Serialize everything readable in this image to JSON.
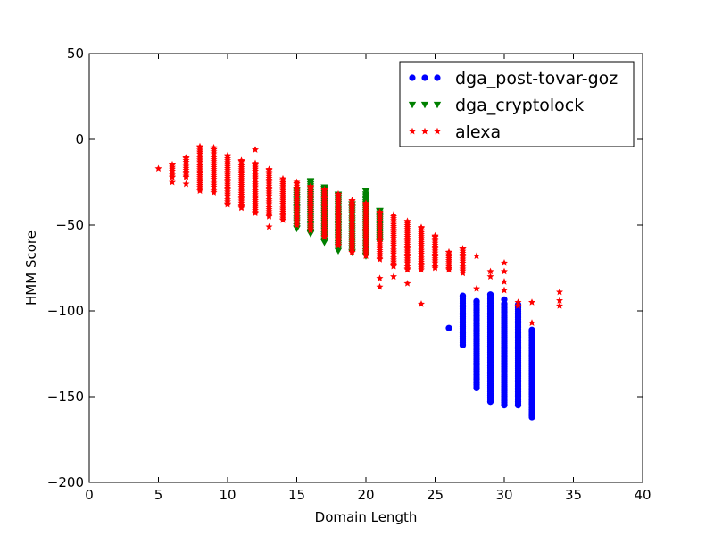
{
  "chart_data": {
    "type": "scatter",
    "xlabel": "Domain Length",
    "ylabel": "HMM Score",
    "xlim": [
      0,
      40
    ],
    "ylim": [
      -200,
      50
    ],
    "xticks": [
      0,
      5,
      10,
      15,
      20,
      25,
      30,
      35,
      40
    ],
    "yticks": [
      50,
      0,
      -50,
      -100,
      -150,
      -200
    ],
    "xtick_labels": [
      "0",
      "5",
      "10",
      "15",
      "20",
      "25",
      "30",
      "35",
      "40"
    ],
    "ytick_labels": [
      "50",
      "0",
      "−50",
      "−100",
      "−150",
      "−200"
    ],
    "grid": false,
    "legend": "top-right",
    "series": [
      {
        "name": "dga_post-tovar-goz",
        "marker": "circle",
        "color": "#0000ff",
        "ranges": [
          {
            "x": 27,
            "ymin": -120,
            "ymax": -92
          },
          {
            "x": 28,
            "ymin": -145,
            "ymax": -95
          },
          {
            "x": 29,
            "ymin": -153,
            "ymax": -92
          },
          {
            "x": 30,
            "ymin": -155,
            "ymax": -96
          },
          {
            "x": 31,
            "ymin": -155,
            "ymax": -98
          },
          {
            "x": 32,
            "ymin": -162,
            "ymax": -113
          }
        ],
        "points": [
          [
            26,
            -110
          ],
          [
            27,
            -113
          ]
        ]
      },
      {
        "name": "dga_cryptolock",
        "marker": "triangle-down",
        "color": "#008000",
        "ranges": [
          {
            "x": 15,
            "ymin": -52,
            "ymax": -30
          },
          {
            "x": 16,
            "ymin": -55,
            "ymax": -25
          },
          {
            "x": 17,
            "ymin": -60,
            "ymax": -29
          },
          {
            "x": 18,
            "ymin": -65,
            "ymax": -33
          },
          {
            "x": 19,
            "ymin": -66,
            "ymax": -38
          },
          {
            "x": 20,
            "ymin": -68,
            "ymax": -32
          },
          {
            "x": 21,
            "ymin": -60,
            "ymax": -42
          }
        ],
        "points": []
      },
      {
        "name": "alexa",
        "marker": "star",
        "color": "#ff0000",
        "ranges": [
          {
            "x": 6,
            "ymin": -22,
            "ymax": -15
          },
          {
            "x": 7,
            "ymin": -22,
            "ymax": -11
          },
          {
            "x": 8,
            "ymin": -30,
            "ymax": -5
          },
          {
            "x": 9,
            "ymin": -31,
            "ymax": -6
          },
          {
            "x": 10,
            "ymin": -38,
            "ymax": -10
          },
          {
            "x": 11,
            "ymin": -40,
            "ymax": -13
          },
          {
            "x": 12,
            "ymin": -43,
            "ymax": -15
          },
          {
            "x": 13,
            "ymin": -45,
            "ymax": -18
          },
          {
            "x": 14,
            "ymin": -47,
            "ymax": -24
          },
          {
            "x": 15,
            "ymin": -50,
            "ymax": -26
          },
          {
            "x": 16,
            "ymin": -53,
            "ymax": -28
          },
          {
            "x": 17,
            "ymin": -57,
            "ymax": -30
          },
          {
            "x": 18,
            "ymin": -62,
            "ymax": -33
          },
          {
            "x": 19,
            "ymin": -66,
            "ymax": -36
          },
          {
            "x": 20,
            "ymin": -68,
            "ymax": -38
          },
          {
            "x": 21,
            "ymin": -70,
            "ymax": -43
          },
          {
            "x": 22,
            "ymin": -74,
            "ymax": -45
          },
          {
            "x": 23,
            "ymin": -76,
            "ymax": -49
          },
          {
            "x": 24,
            "ymin": -76,
            "ymax": -52
          },
          {
            "x": 25,
            "ymin": -75,
            "ymax": -57
          },
          {
            "x": 26,
            "ymin": -76,
            "ymax": -66
          },
          {
            "x": 27,
            "ymin": -78,
            "ymax": -64
          }
        ],
        "points": [
          [
            5,
            -17
          ],
          [
            6,
            -25
          ],
          [
            7,
            -26
          ],
          [
            12,
            -6
          ],
          [
            13,
            -51
          ],
          [
            21,
            -81
          ],
          [
            21,
            -86
          ],
          [
            22,
            -80
          ],
          [
            23,
            -84
          ],
          [
            24,
            -96
          ],
          [
            28,
            -68
          ],
          [
            28,
            -87
          ],
          [
            29,
            -77
          ],
          [
            29,
            -80
          ],
          [
            30,
            -72
          ],
          [
            30,
            -77
          ],
          [
            30,
            -83
          ],
          [
            30,
            -88
          ],
          [
            31,
            -95
          ],
          [
            31,
            -97
          ],
          [
            32,
            -95
          ],
          [
            32,
            -107
          ],
          [
            34,
            -89
          ],
          [
            34,
            -94
          ],
          [
            34,
            -97
          ]
        ]
      }
    ]
  }
}
